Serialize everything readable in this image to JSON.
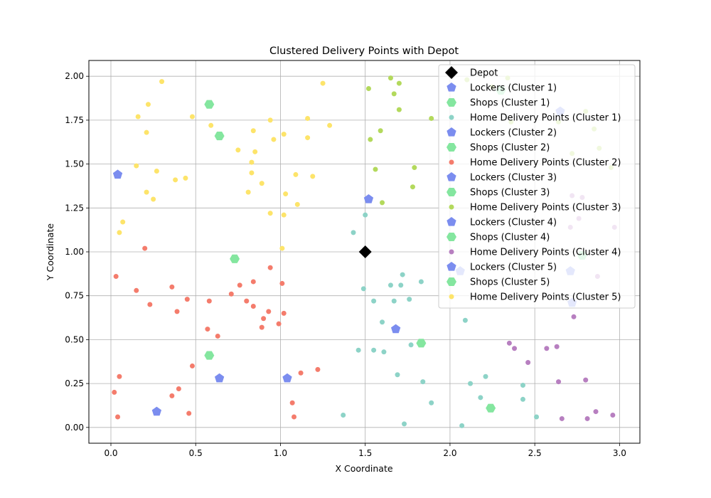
{
  "chart_data": {
    "type": "scatter",
    "title": "Clustered Delivery Points with Depot",
    "xlabel": "X Coordinate",
    "ylabel": "Y Coordinate",
    "xlim": [
      -0.13,
      3.12
    ],
    "ylim": [
      -0.09,
      2.09
    ],
    "xticks": [
      "0.0",
      "0.5",
      "1.0",
      "1.5",
      "2.0",
      "2.5",
      "3.0"
    ],
    "yticks": [
      "0.00",
      "0.25",
      "0.50",
      "0.75",
      "1.00",
      "1.25",
      "1.50",
      "1.75",
      "2.00"
    ],
    "grid": true,
    "legend_position": "top-right",
    "colors": {
      "depot": "#000000",
      "lockers": "#7b8def",
      "shops": "#84e69f",
      "home_c1": "#8dd3c7",
      "home_c2": "#f47c6c",
      "home_c3": "#b3d95c",
      "home_c4": "#b77fc0",
      "home_c5": "#fde46a"
    },
    "series": [
      {
        "name": "Depot",
        "kind": "depot",
        "color": "#000000",
        "points": [
          [
            1.5,
            1.0
          ]
        ]
      },
      {
        "name": "Lockers (Cluster 1)",
        "kind": "locker",
        "color": "#7b8def",
        "points": [
          [
            1.68,
            0.56
          ],
          [
            2.06,
            0.89
          ],
          [
            2.71,
            0.89
          ]
        ]
      },
      {
        "name": "Shops (Cluster 1)",
        "kind": "shop",
        "color": "#84e69f",
        "points": [
          [
            1.83,
            0.48
          ],
          [
            2.24,
            0.11
          ]
        ]
      },
      {
        "name": "Home Delivery Points (Cluster 1)",
        "kind": "home",
        "color": "#8dd3c7",
        "points": [
          [
            1.37,
            0.07
          ],
          [
            1.43,
            1.11
          ],
          [
            1.46,
            0.44
          ],
          [
            1.49,
            0.79
          ],
          [
            1.5,
            1.21
          ],
          [
            1.55,
            0.72
          ],
          [
            1.55,
            0.44
          ],
          [
            1.6,
            0.6
          ],
          [
            1.61,
            0.43
          ],
          [
            1.65,
            0.81
          ],
          [
            1.67,
            0.72
          ],
          [
            1.69,
            0.3
          ],
          [
            1.71,
            0.81
          ],
          [
            1.72,
            0.87
          ],
          [
            1.73,
            0.02
          ],
          [
            1.76,
            0.73
          ],
          [
            1.77,
            0.47
          ],
          [
            1.83,
            0.83
          ],
          [
            1.84,
            0.26
          ],
          [
            1.89,
            0.14
          ],
          [
            2.07,
            0.01
          ],
          [
            2.09,
            0.61
          ],
          [
            2.12,
            0.25
          ],
          [
            2.18,
            0.17
          ],
          [
            2.21,
            0.29
          ],
          [
            2.43,
            0.24
          ],
          [
            2.43,
            0.16
          ],
          [
            2.51,
            0.06
          ]
        ]
      },
      {
        "name": "Lockers (Cluster 2)",
        "kind": "locker",
        "color": "#7b8def",
        "points": [
          [
            0.27,
            0.09
          ],
          [
            0.64,
            0.28
          ],
          [
            1.04,
            0.28
          ]
        ]
      },
      {
        "name": "Shops (Cluster 2)",
        "kind": "shop",
        "color": "#84e69f",
        "points": [
          [
            0.58,
            0.41
          ],
          [
            0.73,
            0.96
          ]
        ]
      },
      {
        "name": "Home Delivery Points (Cluster 2)",
        "kind": "home",
        "color": "#f47c6c",
        "points": [
          [
            0.02,
            0.2
          ],
          [
            0.03,
            0.86
          ],
          [
            0.04,
            0.06
          ],
          [
            0.05,
            0.29
          ],
          [
            0.15,
            0.78
          ],
          [
            0.2,
            1.02
          ],
          [
            0.23,
            0.7
          ],
          [
            0.36,
            0.8
          ],
          [
            0.36,
            0.18
          ],
          [
            0.39,
            0.66
          ],
          [
            0.4,
            0.22
          ],
          [
            0.45,
            0.73
          ],
          [
            0.46,
            0.08
          ],
          [
            0.48,
            0.35
          ],
          [
            0.57,
            0.56
          ],
          [
            0.58,
            0.72
          ],
          [
            0.63,
            0.52
          ],
          [
            0.71,
            0.76
          ],
          [
            0.76,
            0.81
          ],
          [
            0.8,
            0.72
          ],
          [
            0.84,
            0.83
          ],
          [
            0.84,
            0.69
          ],
          [
            0.89,
            0.57
          ],
          [
            0.9,
            0.62
          ],
          [
            0.93,
            0.66
          ],
          [
            0.94,
            0.91
          ],
          [
            0.99,
            0.59
          ],
          [
            1.01,
            0.82
          ],
          [
            1.02,
            0.65
          ],
          [
            1.07,
            0.14
          ],
          [
            1.08,
            0.06
          ],
          [
            1.12,
            0.31
          ],
          [
            1.22,
            0.33
          ]
        ]
      },
      {
        "name": "Lockers (Cluster 3)",
        "kind": "locker",
        "color": "#7b8def",
        "points": [
          [
            1.52,
            1.3
          ],
          [
            2.65,
            1.8
          ]
        ]
      },
      {
        "name": "Shops (Cluster 3)",
        "kind": "shop",
        "color": "#84e69f",
        "points": [
          [
            2.3,
            1.92
          ]
        ]
      },
      {
        "name": "Home Delivery Points (Cluster 3)",
        "kind": "home",
        "color": "#b3d95c",
        "points": [
          [
            1.52,
            1.93
          ],
          [
            1.53,
            1.64
          ],
          [
            1.56,
            1.47
          ],
          [
            1.59,
            1.69
          ],
          [
            1.6,
            1.28
          ],
          [
            1.65,
            1.99
          ],
          [
            1.67,
            1.9
          ],
          [
            1.7,
            1.96
          ],
          [
            1.7,
            1.81
          ],
          [
            1.78,
            1.37
          ],
          [
            1.79,
            1.48
          ],
          [
            1.89,
            1.76
          ],
          [
            2.1,
            1.98
          ],
          [
            2.25,
            1.94
          ],
          [
            2.34,
            1.99
          ],
          [
            2.36,
            1.74
          ],
          [
            2.64,
            1.74
          ],
          [
            2.72,
            1.56
          ],
          [
            2.8,
            1.8
          ],
          [
            2.85,
            1.7
          ],
          [
            2.88,
            1.59
          ],
          [
            2.95,
            1.48
          ]
        ]
      },
      {
        "name": "Lockers (Cluster 4)",
        "kind": "locker",
        "color": "#7b8def",
        "points": [
          [
            2.72,
            0.71
          ]
        ]
      },
      {
        "name": "Shops (Cluster 4)",
        "kind": "shop",
        "color": "#84e69f",
        "points": [
          [
            2.78,
            0.98
          ]
        ]
      },
      {
        "name": "Home Delivery Points (Cluster 4)",
        "kind": "home",
        "color": "#b77fc0",
        "points": [
          [
            2.35,
            0.48
          ],
          [
            2.38,
            0.45
          ],
          [
            2.46,
            0.37
          ],
          [
            2.57,
            0.45
          ],
          [
            2.63,
            0.46
          ],
          [
            2.64,
            0.26
          ],
          [
            2.66,
            0.05
          ],
          [
            2.71,
            1.14
          ],
          [
            2.72,
            1.32
          ],
          [
            2.73,
            0.63
          ],
          [
            2.76,
            1.19
          ],
          [
            2.78,
            1.31
          ],
          [
            2.8,
            0.27
          ],
          [
            2.81,
            0.05
          ],
          [
            2.86,
            0.09
          ],
          [
            2.87,
            0.86
          ],
          [
            2.96,
            0.07
          ],
          [
            2.97,
            1.14
          ]
        ]
      },
      {
        "name": "Lockers (Cluster 5)",
        "kind": "locker",
        "color": "#7b8def",
        "points": [
          [
            0.04,
            1.44
          ]
        ]
      },
      {
        "name": "Shops (Cluster 5)",
        "kind": "shop",
        "color": "#84e69f",
        "points": [
          [
            0.58,
            1.84
          ],
          [
            0.64,
            1.66
          ]
        ]
      },
      {
        "name": "Home Delivery Points (Cluster 5)",
        "kind": "home",
        "color": "#fde46a",
        "points": [
          [
            0.05,
            1.11
          ],
          [
            0.07,
            1.17
          ],
          [
            0.15,
            1.49
          ],
          [
            0.16,
            1.77
          ],
          [
            0.21,
            1.68
          ],
          [
            0.22,
            1.84
          ],
          [
            0.21,
            1.34
          ],
          [
            0.25,
            1.3
          ],
          [
            0.27,
            1.46
          ],
          [
            0.3,
            1.97
          ],
          [
            0.38,
            1.41
          ],
          [
            0.44,
            1.42
          ],
          [
            0.48,
            1.77
          ],
          [
            0.59,
            1.72
          ],
          [
            0.75,
            1.58
          ],
          [
            0.81,
            1.34
          ],
          [
            0.83,
            1.51
          ],
          [
            0.83,
            1.45
          ],
          [
            0.84,
            1.69
          ],
          [
            0.85,
            1.57
          ],
          [
            0.89,
            1.39
          ],
          [
            0.94,
            1.75
          ],
          [
            0.94,
            1.22
          ],
          [
            0.96,
            1.64
          ],
          [
            1.01,
            1.02
          ],
          [
            1.02,
            1.67
          ],
          [
            1.02,
            1.21
          ],
          [
            1.03,
            1.33
          ],
          [
            1.09,
            1.44
          ],
          [
            1.1,
            1.27
          ],
          [
            1.16,
            1.76
          ],
          [
            1.16,
            1.65
          ],
          [
            1.19,
            1.43
          ],
          [
            1.25,
            1.96
          ],
          [
            1.29,
            1.72
          ]
        ]
      }
    ]
  }
}
